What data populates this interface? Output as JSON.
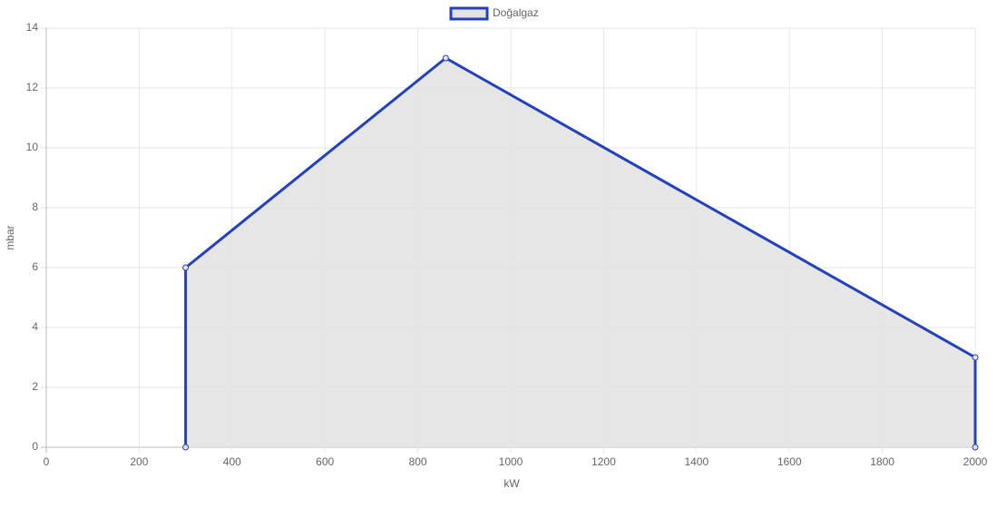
{
  "chart_data": {
    "type": "line",
    "x_label": "kW",
    "y_label": "mbar",
    "x": [
      300,
      300,
      860,
      2000,
      2000
    ],
    "series": [
      {
        "name": "Doğalgaz",
        "color": "#2341bd",
        "fill_color": "#e3e3e3",
        "values": [
          0,
          6,
          13,
          3,
          0
        ]
      }
    ],
    "xlim": [
      0,
      2000
    ],
    "xticks": [
      0,
      200,
      400,
      600,
      800,
      1000,
      1200,
      1400,
      1600,
      1800,
      2000
    ],
    "ylim": [
      0,
      14
    ],
    "yticks": [
      0,
      2,
      4,
      6,
      8,
      10,
      12,
      14
    ],
    "grid": true,
    "fill": true,
    "legend": "top"
  }
}
